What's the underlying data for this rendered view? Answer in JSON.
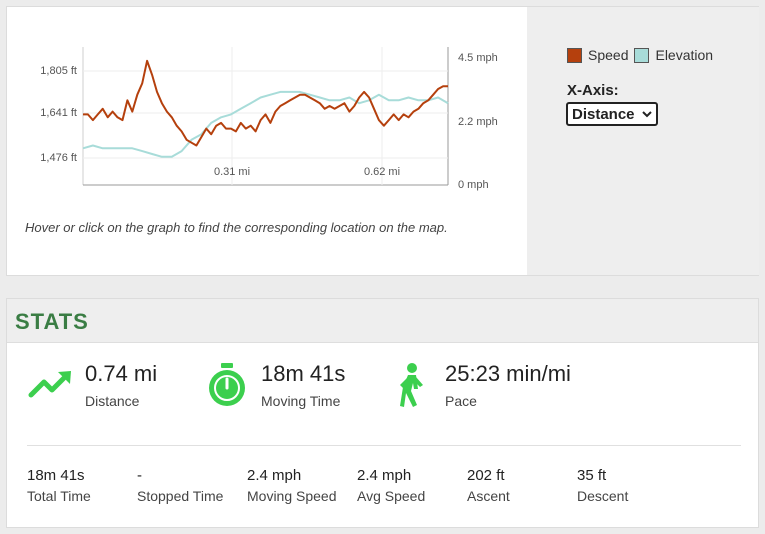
{
  "chart_data": {
    "type": "line",
    "x_ticks": [
      "0.31 mi",
      "0.62 mi"
    ],
    "y_left_ticks": [
      "1,805 ft",
      "1,641 ft",
      "1,476 ft"
    ],
    "y_right_ticks": [
      "4.5 mph",
      "2.2 mph",
      "0 mph"
    ],
    "xlim": [
      0,
      0.74
    ],
    "series": [
      {
        "name": "Speed",
        "color": "#b5400d",
        "x": [
          0.0,
          0.01,
          0.02,
          0.03,
          0.04,
          0.05,
          0.06,
          0.07,
          0.08,
          0.09,
          0.1,
          0.11,
          0.12,
          0.13,
          0.14,
          0.15,
          0.16,
          0.17,
          0.18,
          0.19,
          0.2,
          0.21,
          0.22,
          0.23,
          0.24,
          0.25,
          0.26,
          0.27,
          0.28,
          0.29,
          0.3,
          0.31,
          0.32,
          0.33,
          0.34,
          0.35,
          0.36,
          0.37,
          0.38,
          0.39,
          0.4,
          0.41,
          0.42,
          0.43,
          0.44,
          0.45,
          0.46,
          0.47,
          0.48,
          0.49,
          0.5,
          0.51,
          0.52,
          0.53,
          0.54,
          0.55,
          0.56,
          0.57,
          0.58,
          0.59,
          0.6,
          0.61,
          0.62,
          0.63,
          0.64,
          0.65,
          0.66,
          0.67,
          0.68,
          0.69,
          0.7,
          0.71,
          0.72,
          0.73,
          0.74
        ],
        "values": [
          2.5,
          2.5,
          2.3,
          2.5,
          2.7,
          2.4,
          2.6,
          2.4,
          2.3,
          3.0,
          2.6,
          3.2,
          3.6,
          4.4,
          3.9,
          3.3,
          2.9,
          2.6,
          2.4,
          2.1,
          1.9,
          1.6,
          1.5,
          1.4,
          1.7,
          2.0,
          1.8,
          2.1,
          2.2,
          2.0,
          2.0,
          1.9,
          2.2,
          2.0,
          2.1,
          1.9,
          2.3,
          2.5,
          2.2,
          2.6,
          2.8,
          2.9,
          3.0,
          3.1,
          3.2,
          3.2,
          3.1,
          3.0,
          2.9,
          2.7,
          2.8,
          2.7,
          2.8,
          2.9,
          2.6,
          2.8,
          3.1,
          3.3,
          3.1,
          2.7,
          2.3,
          2.1,
          2.3,
          2.5,
          2.3,
          2.5,
          2.4,
          2.6,
          2.7,
          2.9,
          3.0,
          3.2,
          3.4,
          3.5,
          3.5
        ]
      },
      {
        "name": "Elevation",
        "color": "#a8dcd9",
        "x": [
          0.0,
          0.02,
          0.04,
          0.06,
          0.08,
          0.1,
          0.12,
          0.14,
          0.16,
          0.18,
          0.2,
          0.22,
          0.24,
          0.26,
          0.28,
          0.3,
          0.32,
          0.34,
          0.36,
          0.38,
          0.4,
          0.42,
          0.44,
          0.46,
          0.48,
          0.5,
          0.52,
          0.54,
          0.56,
          0.58,
          0.6,
          0.62,
          0.64,
          0.66,
          0.68,
          0.7,
          0.72,
          0.74
        ],
        "values": [
          1.3,
          1.4,
          1.3,
          1.3,
          1.3,
          1.3,
          1.2,
          1.1,
          1.0,
          1.0,
          1.2,
          1.6,
          1.8,
          2.2,
          2.4,
          2.5,
          2.7,
          2.9,
          3.1,
          3.2,
          3.3,
          3.3,
          3.3,
          3.2,
          3.1,
          3.0,
          3.0,
          3.1,
          2.9,
          3.0,
          3.2,
          3.0,
          3.0,
          3.1,
          3.0,
          3.0,
          3.1,
          2.9
        ]
      }
    ]
  },
  "chart_side": {
    "legend_speed": "Speed",
    "legend_elevation": "Elevation",
    "xaxis_label": "X-Axis:",
    "xaxis_selected": "Distance",
    "speed_color": "#b5400d",
    "elevation_color": "#a8dcd9"
  },
  "caption": "Hover or click on the graph to find the corresponding location on the map.",
  "stats": {
    "title": "STATS",
    "distance": {
      "value": "0.74 mi",
      "label": "Distance"
    },
    "moving_time": {
      "value": "18m 41s",
      "label": "Moving Time"
    },
    "pace": {
      "value": "25:23 min/mi",
      "label": "Pace"
    },
    "small": [
      {
        "value": "18m 41s",
        "label": "Total Time"
      },
      {
        "value": "-",
        "label": "Stopped Time"
      },
      {
        "value": "2.4 mph",
        "label": "Moving Speed"
      },
      {
        "value": "2.4 mph",
        "label": "Avg Speed"
      },
      {
        "value": "202 ft",
        "label": "Ascent"
      },
      {
        "value": "35 ft",
        "label": "Descent"
      }
    ],
    "accent_color": "#3a7d44",
    "icon_color": "#3ccf4e"
  }
}
